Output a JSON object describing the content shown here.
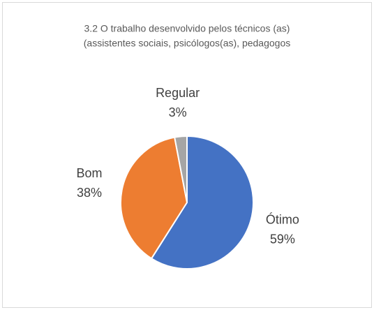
{
  "chart_data": {
    "type": "pie",
    "title": [
      "3.2 O trabalho desenvolvido pelos técnicos (as)",
      "(assistentes sociais, psicólogos(as), pedagogos"
    ],
    "categories": [
      "Ótimo",
      "Bom",
      "Regular"
    ],
    "values": [
      59,
      38,
      3
    ],
    "value_labels": [
      "59%",
      "38%",
      "3%"
    ],
    "colors": [
      "#4472c4",
      "#ed7d31",
      "#a5a5a5"
    ]
  }
}
